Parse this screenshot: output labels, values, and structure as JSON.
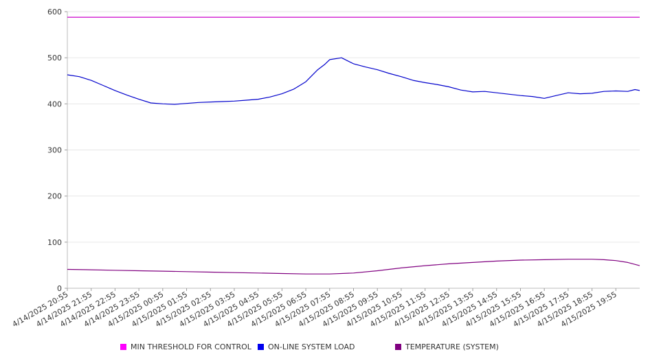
{
  "chart_data": {
    "type": "line",
    "title": "",
    "xlabel": "",
    "ylabel": "",
    "ylim": [
      0,
      600
    ],
    "yticks": [
      0,
      100,
      200,
      300,
      400,
      500,
      600
    ],
    "grid": "horizontal",
    "legend_position": "bottom",
    "categories": [
      "4/14/2025 20:55",
      "4/14/2025 21:55",
      "4/14/2025 22:55",
      "4/14/2025 23:55",
      "4/15/2025 00:55",
      "4/15/2025 01:55",
      "4/15/2025 02:55",
      "4/15/2025 03:55",
      "4/15/2025 04:55",
      "4/15/2025 05:55",
      "4/15/2025 06:55",
      "4/15/2025 07:55",
      "4/15/2025 08:55",
      "4/15/2025 09:55",
      "4/15/2025 10:55",
      "4/15/2025 11:55",
      "4/15/2025 12:55",
      "4/15/2025 13:55",
      "4/15/2025 14:55",
      "4/15/2025 15:55",
      "4/15/2025 16:55",
      "4/15/2025 17:55",
      "4/15/2025 18:55",
      "4/15/2025 19:55"
    ],
    "x_end_hours": 24,
    "series": [
      {
        "name": "MIN THRESHOLD FOR CONTROL",
        "color": "#cc00cc",
        "x": [
          0,
          24
        ],
        "values": [
          588,
          588
        ]
      },
      {
        "name": "ON-LINE SYSTEM LOAD",
        "color": "#0000cc",
        "x": [
          0,
          0.5,
          1,
          1.5,
          2,
          2.5,
          3,
          3.5,
          4,
          4.5,
          5,
          5.5,
          6,
          6.5,
          7,
          7.5,
          8,
          8.5,
          9,
          9.5,
          10,
          10.5,
          10.8,
          11,
          11.5,
          12,
          12.5,
          13,
          13.5,
          14,
          14.5,
          15,
          15.5,
          16,
          16.5,
          17,
          17.5,
          18,
          18.5,
          19,
          19.5,
          20,
          20.5,
          21,
          21.5,
          22,
          22.5,
          23,
          23.5,
          23.8,
          24
        ],
        "values": [
          463,
          459,
          451,
          440,
          429,
          419,
          410,
          402,
          400,
          399,
          401,
          403,
          404,
          405,
          406,
          408,
          410,
          415,
          422,
          432,
          448,
          474,
          486,
          496,
          500,
          487,
          480,
          474,
          466,
          459,
          451,
          446,
          442,
          437,
          430,
          426,
          427,
          424,
          421,
          418,
          416,
          412,
          418,
          424,
          422,
          423,
          427,
          428,
          427,
          431,
          429
        ]
      },
      {
        "name": "TEMPERATURE (SYSTEM)",
        "color": "#800080",
        "x": [
          0,
          1,
          2,
          3,
          4,
          5,
          6,
          7,
          8,
          9,
          10,
          11,
          12,
          13,
          14,
          15,
          16,
          17,
          18,
          19,
          20,
          21,
          22,
          22.5,
          23,
          23.5,
          24
        ],
        "values": [
          41,
          40,
          39,
          38,
          37,
          36,
          35,
          34,
          33,
          32,
          31,
          31,
          33,
          38,
          44,
          49,
          53,
          56,
          59,
          61,
          62,
          63,
          63,
          62,
          60,
          56,
          49
        ]
      }
    ]
  }
}
